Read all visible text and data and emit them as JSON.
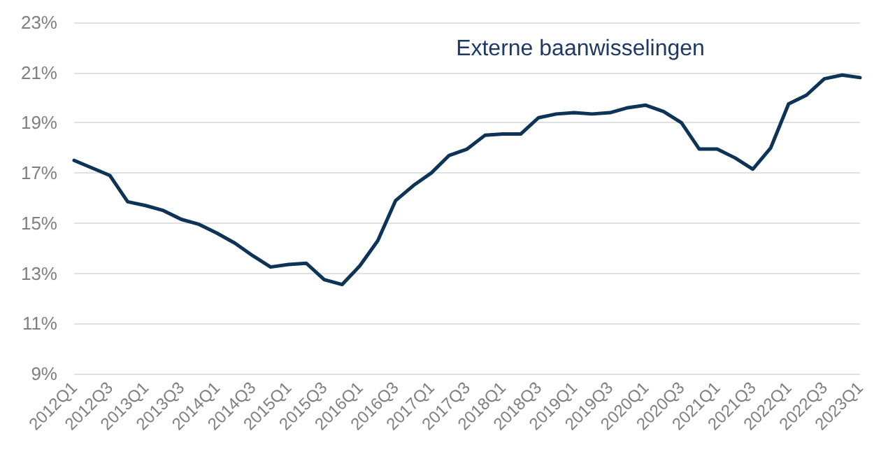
{
  "chart_data": {
    "type": "line",
    "title": "Externe baanwisselingen",
    "categories": [
      "2012Q1",
      null,
      "2012Q3",
      null,
      "2013Q1",
      null,
      "2013Q3",
      null,
      "2014Q1",
      null,
      "2014Q3",
      null,
      "2015Q1",
      null,
      "2015Q3",
      null,
      "2016Q1",
      null,
      "2016Q3",
      null,
      "2017Q1",
      null,
      "2017Q3",
      null,
      "2018Q1",
      null,
      "2018Q3",
      null,
      "2019Q1",
      null,
      "2019Q3",
      null,
      "2020Q1",
      null,
      "2020Q3",
      null,
      "2021Q1",
      null,
      "2021Q3",
      null,
      "2022Q1",
      null,
      "2022Q3",
      null,
      "2023Q1"
    ],
    "series": [
      {
        "color": "#0d3356",
        "values": [
          17.5,
          17.2,
          16.9,
          15.85,
          15.7,
          15.5,
          15.15,
          14.95,
          14.6,
          14.2,
          13.7,
          13.25,
          13.35,
          13.4,
          12.75,
          12.55,
          13.3,
          14.3,
          15.9,
          16.5,
          17.0,
          17.7,
          17.95,
          18.5,
          18.55,
          18.55,
          19.2,
          19.35,
          19.4,
          19.35,
          19.4,
          19.6,
          19.7,
          19.45,
          19.0,
          17.95,
          17.95,
          17.6,
          17.15,
          18.0,
          19.75,
          20.1,
          20.75,
          20.9,
          20.8
        ]
      }
    ],
    "ylim": [
      9,
      23
    ],
    "yticks": [
      {
        "value": 9,
        "label": "9%"
      },
      {
        "value": 11,
        "label": "11%"
      },
      {
        "value": 13,
        "label": "13%"
      },
      {
        "value": 15,
        "label": "15%"
      },
      {
        "value": 17,
        "label": "17%"
      },
      {
        "value": 19,
        "label": "19%"
      },
      {
        "value": 21,
        "label": "21%"
      },
      {
        "value": 23,
        "label": "23%"
      }
    ],
    "grid": "y",
    "marker": "none",
    "line_style": "solid"
  }
}
